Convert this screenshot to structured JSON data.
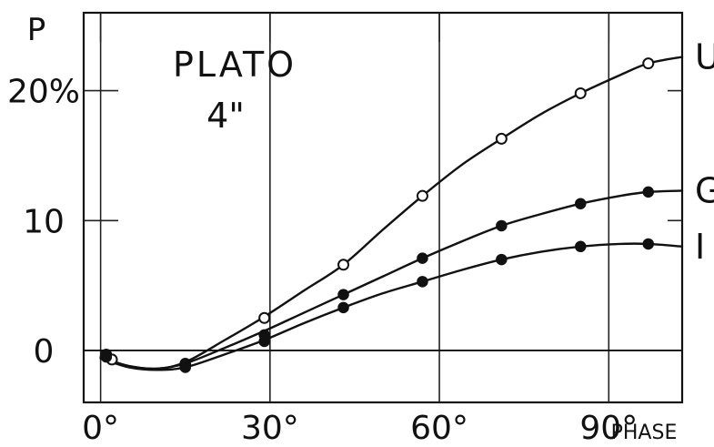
{
  "chart_data": {
    "type": "line",
    "title": "PLATO",
    "subtitle": "4\"",
    "ylabel": "P",
    "xlabel": "PHASE",
    "xlim": [
      -3,
      103
    ],
    "ylim": [
      -4,
      26
    ],
    "x_ticks": [
      0,
      30,
      60,
      90
    ],
    "x_tick_labels": [
      "0°",
      "30°",
      "60°",
      "90°"
    ],
    "y_ticks": [
      0,
      10,
      20
    ],
    "y_tick_labels": [
      "0",
      "10",
      "20%"
    ],
    "grid": true,
    "series": [
      {
        "name": "U",
        "marker": "open",
        "x": [
          1,
          2,
          15,
          29,
          43,
          57,
          71,
          85,
          97
        ],
        "y": [
          -0.4,
          -0.7,
          -1.1,
          2.5,
          6.6,
          11.9,
          16.3,
          19.8,
          22.1
        ],
        "curve_x": [
          0,
          5,
          10,
          15,
          22,
          29,
          36,
          43,
          50,
          57,
          64,
          71,
          78,
          85,
          92,
          97,
          103
        ],
        "curve_y": [
          -0.6,
          -1.2,
          -1.4,
          -0.9,
          0.8,
          2.6,
          4.6,
          6.6,
          9.3,
          11.9,
          14.3,
          16.3,
          18.2,
          19.8,
          21.2,
          22.1,
          22.6
        ]
      },
      {
        "name": "G",
        "marker": "filled",
        "x": [
          1,
          15,
          29,
          43,
          57,
          71,
          85,
          97
        ],
        "y": [
          -0.3,
          -1.0,
          1.2,
          4.3,
          7.1,
          9.6,
          11.3,
          12.2
        ],
        "curve_x": [
          0,
          5,
          10,
          15,
          22,
          29,
          36,
          43,
          50,
          57,
          64,
          71,
          78,
          85,
          92,
          97,
          103
        ],
        "curve_y": [
          -0.5,
          -1.2,
          -1.4,
          -1.0,
          0.2,
          1.5,
          2.9,
          4.3,
          5.7,
          7.1,
          8.4,
          9.6,
          10.5,
          11.3,
          11.9,
          12.2,
          12.3
        ]
      },
      {
        "name": "I",
        "marker": "filled",
        "x": [
          1,
          15,
          29,
          43,
          57,
          71,
          85,
          97
        ],
        "y": [
          -0.5,
          -1.3,
          0.7,
          3.3,
          5.3,
          7.0,
          8.0,
          8.2
        ],
        "curve_x": [
          0,
          5,
          10,
          15,
          22,
          29,
          36,
          43,
          50,
          57,
          64,
          71,
          78,
          85,
          92,
          97,
          103
        ],
        "curve_y": [
          -0.6,
          -1.3,
          -1.5,
          -1.3,
          -0.3,
          0.8,
          2.1,
          3.3,
          4.4,
          5.3,
          6.2,
          7.0,
          7.6,
          8.0,
          8.2,
          8.2,
          8.0
        ]
      }
    ]
  }
}
